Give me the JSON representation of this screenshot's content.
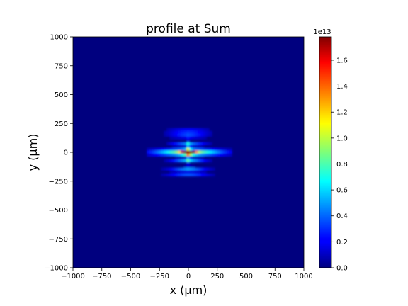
{
  "chart_data": {
    "type": "heatmap",
    "title": "profile at Sum",
    "xlabel": "x (μm)",
    "ylabel": "y (μm)",
    "xlim": [
      -1000,
      1000
    ],
    "ylim": [
      -1000,
      1000
    ],
    "x_ticks": [
      -1000,
      -750,
      -500,
      -250,
      0,
      250,
      500,
      750,
      1000
    ],
    "y_ticks": [
      -1000,
      -750,
      -500,
      -250,
      0,
      250,
      500,
      750,
      1000
    ],
    "x_tick_labels": [
      "−1000",
      "−750",
      "−500",
      "−250",
      "0",
      "250",
      "500",
      "750",
      "1000"
    ],
    "y_tick_labels": [
      "−1000",
      "−750",
      "−500",
      "−250",
      "0",
      "250",
      "500",
      "750",
      "1000"
    ],
    "colormap": "jet",
    "colorbar": {
      "min": 0,
      "max": 1.78,
      "multiplier_label": "1e13",
      "ticks": [
        0.0,
        0.2,
        0.4,
        0.6,
        0.8,
        1.0,
        1.2,
        1.4,
        1.6
      ],
      "tick_labels": [
        "0.0",
        "0.2",
        "0.4",
        "0.6",
        "0.8",
        "1.0",
        "1.2",
        "1.4",
        "1.6"
      ]
    },
    "peak": {
      "x": 0,
      "y": 0,
      "value": 1.78
    },
    "profile": {
      "core_width_x": 40,
      "core_width_y": 12,
      "halo_width_x": 210,
      "halo_width_y": 20,
      "fringe_offsets_y": [
        -185,
        -140,
        -70,
        70,
        140,
        185
      ],
      "fringe_width_x": 90,
      "fringe_level": 0.3
    },
    "grid": false
  }
}
